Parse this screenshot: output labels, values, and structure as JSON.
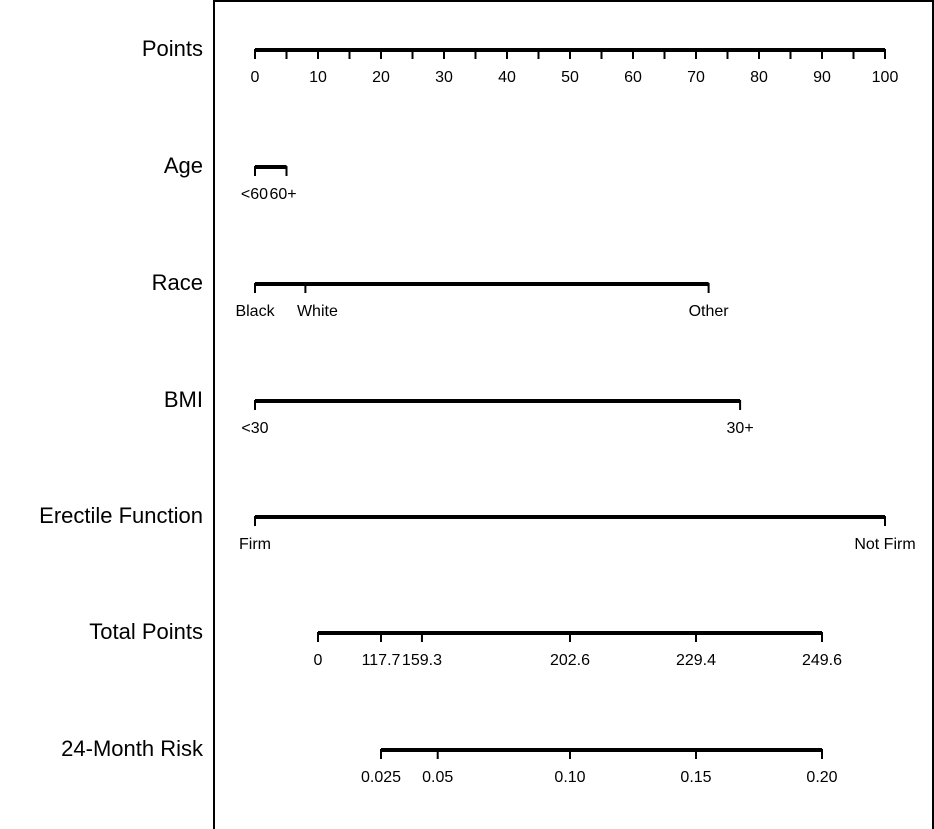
{
  "chart_data": {
    "type": "nomogram",
    "rows": [
      {
        "label": "Points",
        "ticks": [
          {
            "points": 0,
            "label": "0"
          },
          {
            "points": 5,
            "label": ""
          },
          {
            "points": 10,
            "label": "10"
          },
          {
            "points": 15,
            "label": ""
          },
          {
            "points": 20,
            "label": "20"
          },
          {
            "points": 25,
            "label": ""
          },
          {
            "points": 30,
            "label": "30"
          },
          {
            "points": 35,
            "label": ""
          },
          {
            "points": 40,
            "label": "40"
          },
          {
            "points": 45,
            "label": ""
          },
          {
            "points": 50,
            "label": "50"
          },
          {
            "points": 55,
            "label": ""
          },
          {
            "points": 60,
            "label": "60"
          },
          {
            "points": 65,
            "label": ""
          },
          {
            "points": 70,
            "label": "70"
          },
          {
            "points": 75,
            "label": ""
          },
          {
            "points": 80,
            "label": "80"
          },
          {
            "points": 85,
            "label": ""
          },
          {
            "points": 90,
            "label": "90"
          },
          {
            "points": 95,
            "label": ""
          },
          {
            "points": 100,
            "label": "100"
          }
        ]
      },
      {
        "label": "Age",
        "ticks": [
          {
            "points": 0,
            "label": "<60"
          },
          {
            "points": 5,
            "label": "60+"
          }
        ]
      },
      {
        "label": "Race",
        "ticks": [
          {
            "points": 0,
            "label": "Black"
          },
          {
            "points": 8,
            "label": "White"
          },
          {
            "points": 72,
            "label": "Other"
          }
        ]
      },
      {
        "label": "BMI",
        "ticks": [
          {
            "points": 0,
            "label": "<30"
          },
          {
            "points": 77,
            "label": "30+"
          }
        ]
      },
      {
        "label": "Erectile Function",
        "ticks": [
          {
            "points": 0,
            "label": "Firm"
          },
          {
            "points": 100,
            "label": "Not Firm"
          }
        ]
      },
      {
        "label": "Total Points",
        "ticks": [
          {
            "points": 10,
            "label": "0"
          },
          {
            "points": 20,
            "label": "117.7"
          },
          {
            "points": 26.5,
            "label": "159.3"
          },
          {
            "points": 50,
            "label": "202.6"
          },
          {
            "points": 70,
            "label": "229.4"
          },
          {
            "points": 90,
            "label": "249.6"
          }
        ]
      },
      {
        "label": "24-Month Risk",
        "ticks": [
          {
            "points": 20,
            "label": "0.025"
          },
          {
            "points": 29,
            "label": "0.05"
          },
          {
            "points": 50,
            "label": "0.10"
          },
          {
            "points": 70,
            "label": "0.15"
          },
          {
            "points": 90,
            "label": "0.20"
          }
        ]
      }
    ],
    "points_scale": [
      0,
      100
    ]
  }
}
